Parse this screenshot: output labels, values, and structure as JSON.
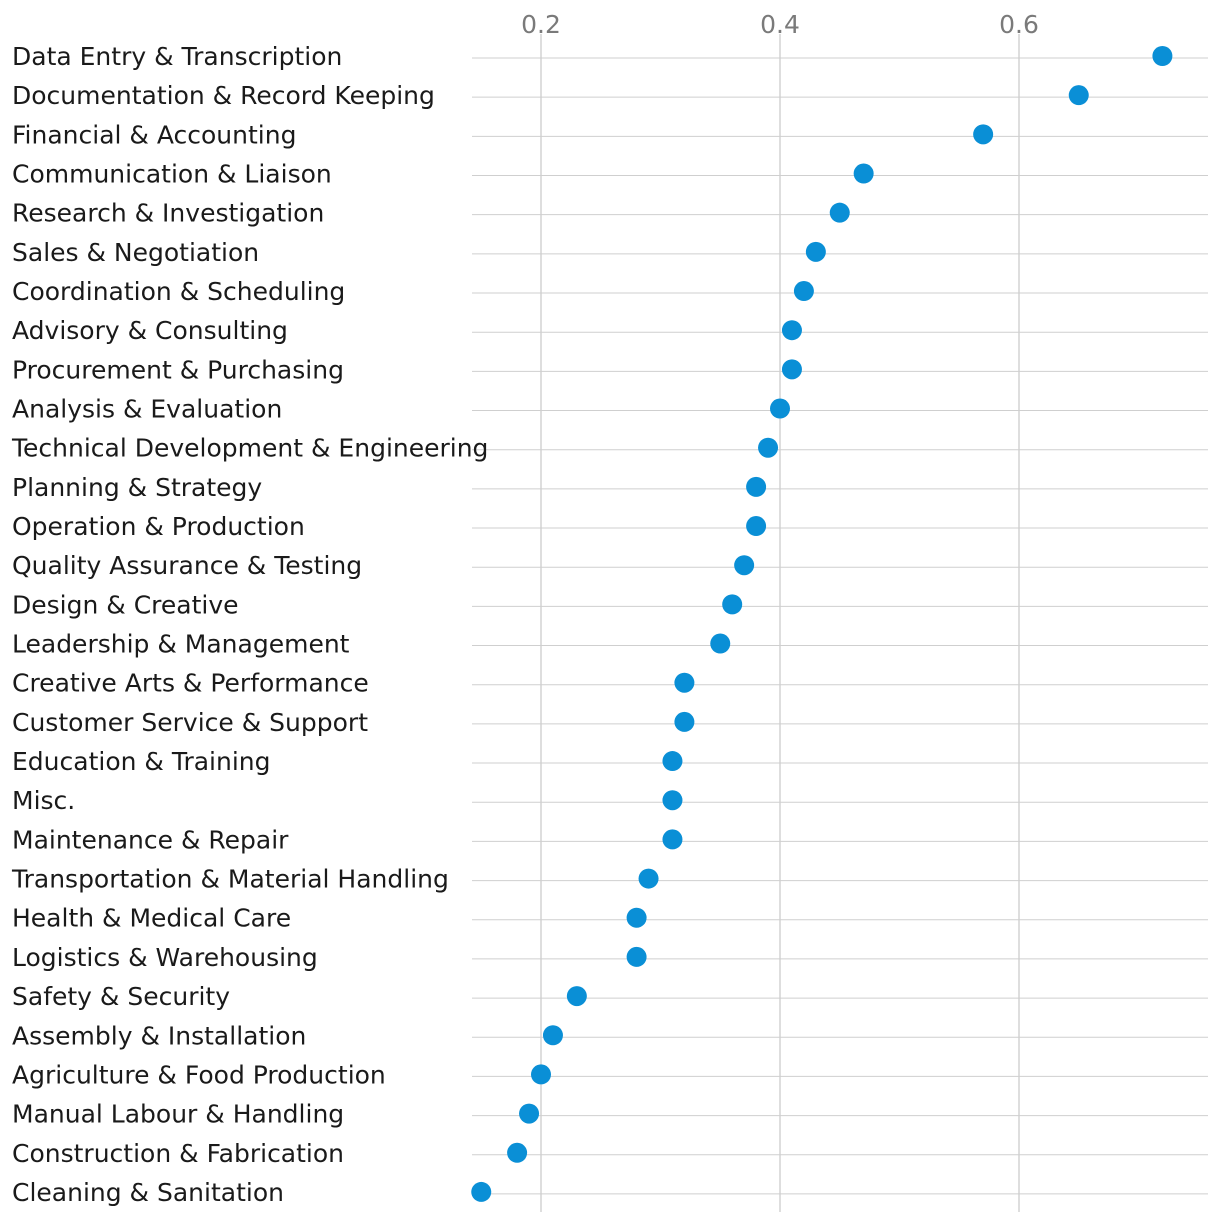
{
  "chart_data": {
    "type": "scatter",
    "orientation": "horizontal-dot",
    "title": "",
    "xlabel": "",
    "ylabel": "",
    "xlim": [
      0.14,
      0.76
    ],
    "xticks": [
      0.2,
      0.4,
      0.6
    ],
    "xtick_labels": [
      "0.2",
      "0.4",
      "0.6"
    ],
    "grid": true,
    "dot_color": "#0a8fd6",
    "categories": [
      "Data Entry & Transcription",
      "Documentation & Record Keeping",
      "Financial & Accounting",
      "Communication & Liaison",
      "Research & Investigation",
      "Sales & Negotiation",
      "Coordination & Scheduling",
      "Advisory & Consulting",
      "Procurement & Purchasing",
      "Analysis & Evaluation",
      "Technical Development & Engineering",
      "Planning & Strategy",
      "Operation & Production",
      "Quality Assurance & Testing",
      "Design & Creative",
      "Leadership & Management",
      "Creative Arts & Performance",
      "Customer Service & Support",
      "Education & Training",
      "Misc.",
      "Maintenance & Repair",
      "Transportation & Material Handling",
      "Health & Medical Care",
      "Logistics & Warehousing",
      "Safety & Security",
      "Assembly & Installation",
      "Agriculture & Food Production",
      "Manual Labour & Handling",
      "Construction & Fabrication",
      "Cleaning & Sanitation"
    ],
    "values": [
      0.72,
      0.65,
      0.57,
      0.47,
      0.45,
      0.43,
      0.42,
      0.41,
      0.41,
      0.4,
      0.39,
      0.38,
      0.38,
      0.37,
      0.36,
      0.35,
      0.32,
      0.32,
      0.31,
      0.31,
      0.31,
      0.29,
      0.28,
      0.28,
      0.23,
      0.21,
      0.2,
      0.19,
      0.18,
      0.15
    ]
  }
}
